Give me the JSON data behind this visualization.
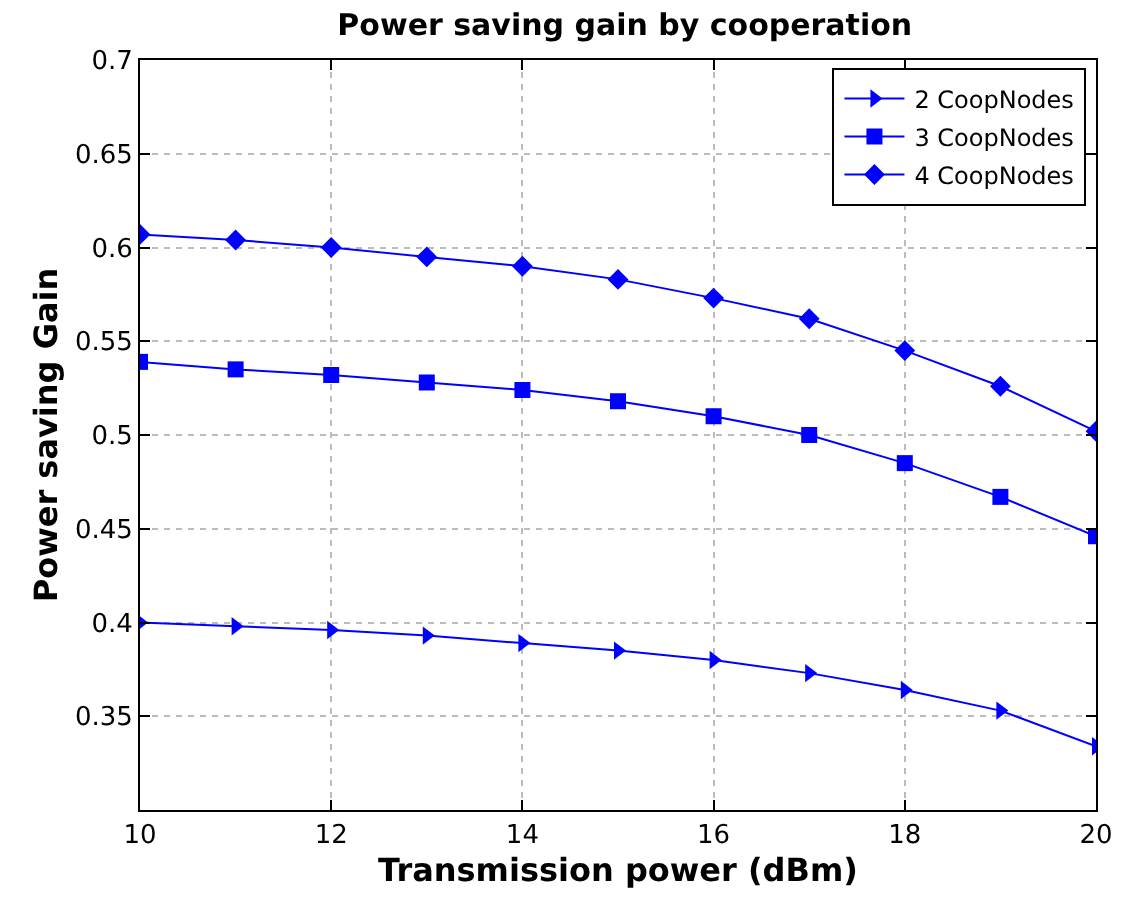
{
  "chart_data": {
    "type": "line",
    "title": "Power saving gain by cooperation",
    "xlabel": "Transmission power (dBm)",
    "ylabel": "Power saving Gain",
    "x": [
      10,
      11,
      12,
      13,
      14,
      15,
      16,
      17,
      18,
      19,
      20
    ],
    "series": [
      {
        "name": "2 CoopNodes",
        "color": "#0000ff",
        "marker": "triangle",
        "values": [
          0.4,
          0.398,
          0.396,
          0.393,
          0.389,
          0.385,
          0.38,
          0.373,
          0.364,
          0.353,
          0.334
        ]
      },
      {
        "name": "3 CoopNodes",
        "color": "#0000ff",
        "marker": "square",
        "values": [
          0.539,
          0.535,
          0.532,
          0.528,
          0.524,
          0.518,
          0.51,
          0.5,
          0.485,
          0.467,
          0.446
        ]
      },
      {
        "name": "4 CoopNodes",
        "color": "#0000ff",
        "marker": "diamond",
        "values": [
          0.607,
          0.604,
          0.6,
          0.595,
          0.59,
          0.583,
          0.573,
          0.562,
          0.545,
          0.526,
          0.502
        ]
      }
    ],
    "xlim": [
      10,
      20
    ],
    "xticks": [
      10,
      12,
      14,
      16,
      18,
      20
    ],
    "ylim": [
      0.3,
      0.7
    ],
    "yticks": [
      0.35,
      0.4,
      0.45,
      0.5,
      0.55,
      0.6,
      0.65,
      0.7
    ],
    "grid": true,
    "legend": "top right",
    "line_style": "solid"
  }
}
